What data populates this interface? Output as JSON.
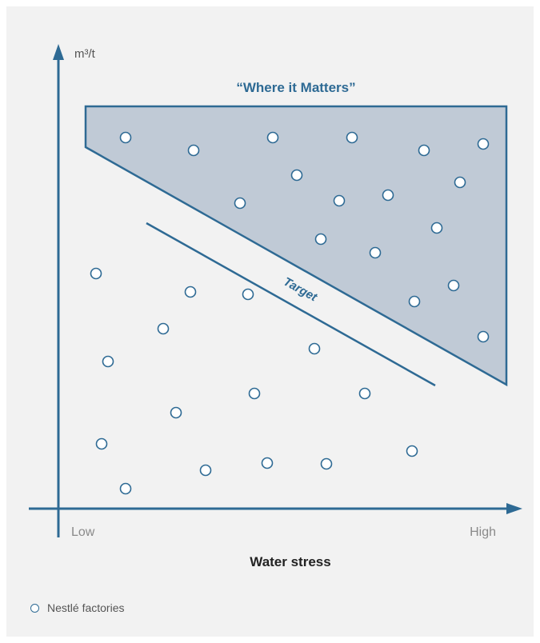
{
  "diagram": {
    "y_axis_label": "m³/t",
    "x_axis_title": "Water stress",
    "x_axis_low": "Low",
    "x_axis_high": "High",
    "region_label": "“Where it Matters”",
    "target_label": "Target"
  },
  "legend": {
    "factories_label": "Nestlé factories"
  },
  "colors": {
    "accent": "#2e6a94",
    "region_fill": "#c0cad6",
    "background": "#f2f2f2",
    "axis_text": "#8a8a8a"
  }
}
